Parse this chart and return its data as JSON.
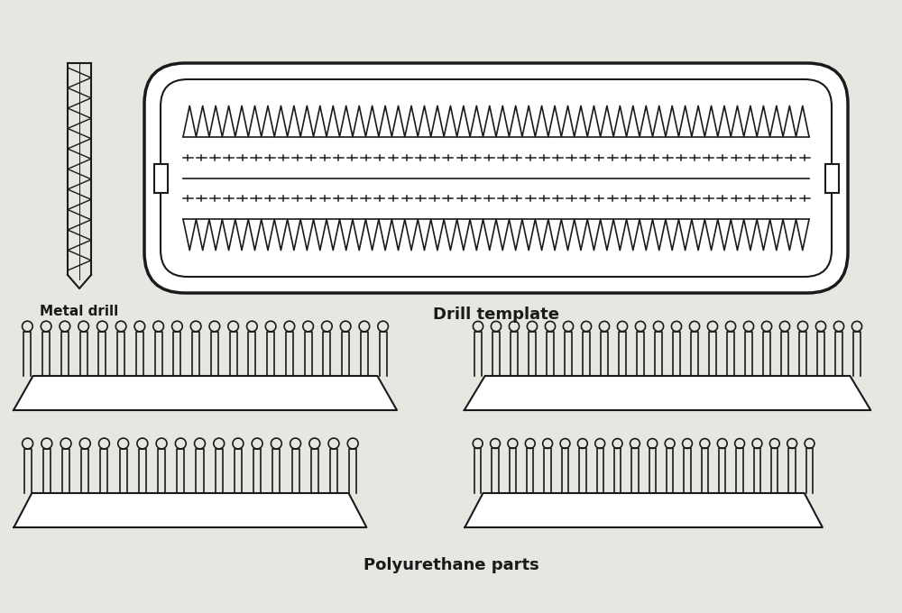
{
  "bg_color": "#e8e6e1",
  "line_color": "#1a1a1a",
  "lw_outer": 2.5,
  "lw_inner": 1.5,
  "lw_detail": 1.2,
  "title_metal_drill": "Metal drill",
  "title_drill_template": "Drill template",
  "title_polyurethane": "Polyurethane parts",
  "fig_w": 10.0,
  "fig_h": 6.8
}
